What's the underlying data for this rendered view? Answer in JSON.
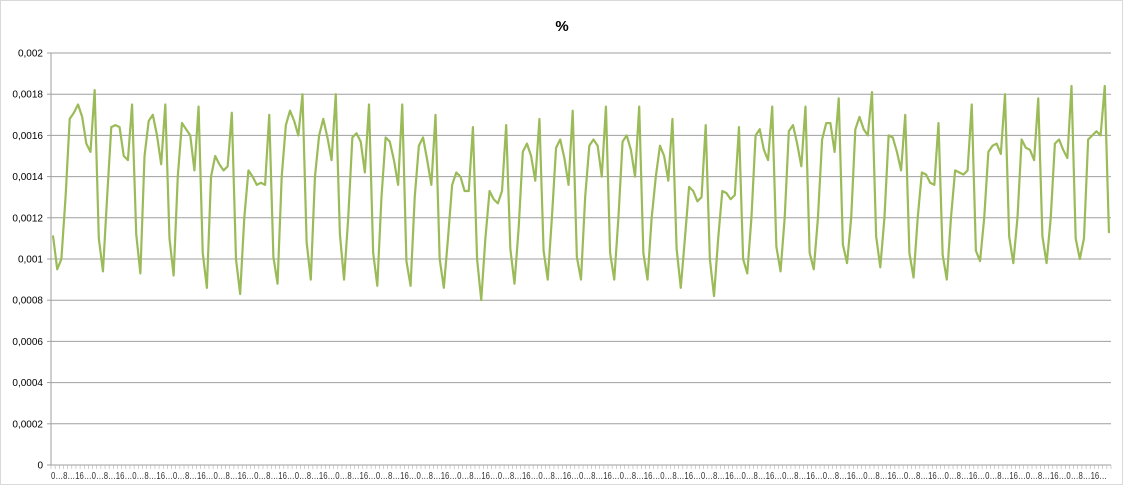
{
  "chart_data": {
    "type": "line",
    "title": "%",
    "xlabel": "",
    "ylabel": "",
    "ylim": [
      0,
      0.002
    ],
    "y_ticks": [
      0,
      0.0002,
      0.0004,
      0.0006,
      0.0008,
      0.001,
      0.0012,
      0.0014,
      0.0016,
      0.0018,
      0.002
    ],
    "y_tick_labels": [
      "0",
      "0,0002",
      "0,0004",
      "0,0006",
      "0,0008",
      "0,001",
      "0,0012",
      "0,0014",
      "0,0016",
      "0,0018",
      "0,002"
    ],
    "x_category_labels": "0…8…16…0…8…16…0…8…16…0…8…16…0…8…16…0…8…16…0…8…16…0…8…16…0…8…16…0…8…16…0…8…16…0…8…16…0…8…16…0…8…16…0…8…16…0…8…16…0…8…16…0…8…16…0…8…16…0…8…16…0…8…16…0…8…16…0…8…16…0…8…16…0…8…16…0…8…16…",
    "grid": true,
    "legend": "none",
    "series_color": "#9bbb59",
    "series": [
      {
        "values": [
          0.00111,
          0.00095,
          0.001,
          0.0013,
          0.00168,
          0.00171,
          0.00175,
          0.00169,
          0.00156,
          0.00152,
          0.00182,
          0.0011,
          0.00094,
          0.0013,
          0.00164,
          0.00165,
          0.00164,
          0.0015,
          0.00148,
          0.00175,
          0.00112,
          0.00093,
          0.0015,
          0.00167,
          0.0017,
          0.0016,
          0.00146,
          0.00175,
          0.0011,
          0.00092,
          0.0014,
          0.00166,
          0.00163,
          0.0016,
          0.00143,
          0.00174,
          0.00103,
          0.00086,
          0.0014,
          0.0015,
          0.00146,
          0.00143,
          0.00145,
          0.00171,
          0.001,
          0.00083,
          0.0012,
          0.00143,
          0.0014,
          0.00136,
          0.00137,
          0.00136,
          0.0017,
          0.00101,
          0.00088,
          0.0014,
          0.00165,
          0.00172,
          0.00167,
          0.0016,
          0.0018,
          0.00108,
          0.0009,
          0.0014,
          0.0016,
          0.00168,
          0.00159,
          0.00148,
          0.0018,
          0.00112,
          0.0009,
          0.0012,
          0.00159,
          0.00161,
          0.00157,
          0.00142,
          0.00175,
          0.00103,
          0.00087,
          0.0013,
          0.00159,
          0.00157,
          0.00148,
          0.00136,
          0.00175,
          0.00099,
          0.00087,
          0.0013,
          0.00155,
          0.00159,
          0.00148,
          0.00136,
          0.0017,
          0.001,
          0.00086,
          0.0011,
          0.00136,
          0.00142,
          0.0014,
          0.00133,
          0.00133,
          0.00164,
          0.001,
          0.0008,
          0.0011,
          0.00133,
          0.00129,
          0.00127,
          0.00133,
          0.00165,
          0.00105,
          0.00088,
          0.00115,
          0.00152,
          0.00156,
          0.0015,
          0.00138,
          0.00168,
          0.00104,
          0.0009,
          0.0012,
          0.00154,
          0.00158,
          0.00149,
          0.00136,
          0.00172,
          0.00101,
          0.0009,
          0.0013,
          0.00155,
          0.00158,
          0.00155,
          0.0014,
          0.00174,
          0.00103,
          0.0009,
          0.0012,
          0.00157,
          0.0016,
          0.00153,
          0.0014,
          0.00174,
          0.00103,
          0.0009,
          0.0012,
          0.0014,
          0.00155,
          0.0015,
          0.00138,
          0.00168,
          0.00105,
          0.00086,
          0.0011,
          0.00135,
          0.00133,
          0.00128,
          0.0013,
          0.00165,
          0.001,
          0.00082,
          0.0011,
          0.00133,
          0.00132,
          0.00129,
          0.00131,
          0.00164,
          0.001,
          0.00093,
          0.0012,
          0.0016,
          0.00163,
          0.00153,
          0.00148,
          0.00174,
          0.00106,
          0.00094,
          0.0012,
          0.00162,
          0.00165,
          0.00156,
          0.00145,
          0.00174,
          0.00103,
          0.00095,
          0.0012,
          0.00158,
          0.00166,
          0.00166,
          0.00152,
          0.00178,
          0.00107,
          0.00098,
          0.0012,
          0.00163,
          0.00169,
          0.00163,
          0.0016,
          0.00181,
          0.00111,
          0.00096,
          0.0012,
          0.0016,
          0.00159,
          0.00152,
          0.00143,
          0.0017,
          0.00103,
          0.00091,
          0.0012,
          0.00142,
          0.00141,
          0.00137,
          0.00136,
          0.00166,
          0.00102,
          0.0009,
          0.0012,
          0.00143,
          0.00142,
          0.00141,
          0.00143,
          0.00175,
          0.00104,
          0.00099,
          0.0012,
          0.00152,
          0.00155,
          0.00156,
          0.00151,
          0.0018,
          0.00111,
          0.00098,
          0.0012,
          0.00158,
          0.00154,
          0.00153,
          0.00148,
          0.00178,
          0.00111,
          0.00098,
          0.0012,
          0.00156,
          0.00158,
          0.00153,
          0.00149,
          0.00184,
          0.0011,
          0.001,
          0.0011,
          0.00158,
          0.0016,
          0.00162,
          0.0016,
          0.00184,
          0.00113
        ]
      }
    ]
  }
}
